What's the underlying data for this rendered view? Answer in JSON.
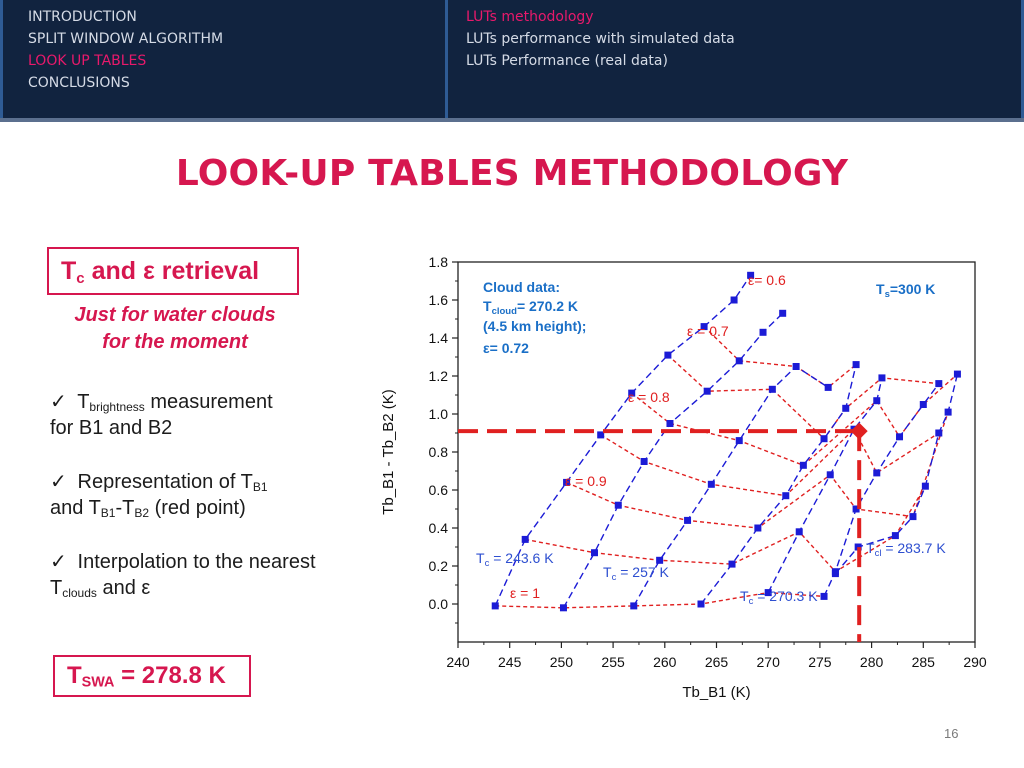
{
  "nav": {
    "left": [
      "INTRODUCTION",
      "SPLIT WINDOW ALGORITHM",
      "LOOK UP TABLES",
      "CONCLUSIONS"
    ],
    "left_active": 2,
    "right": [
      "LUTs methodology",
      "LUTs performance with simulated data",
      "LUTs Performance (real data)"
    ],
    "right_active": 0
  },
  "title": "LOOK-UP TABLES METHODOLOGY",
  "retrieval_box": {
    "t": "T",
    "sub": "c",
    "rest": " and ε retrieval"
  },
  "note": {
    "line1": "Just for water clouds",
    "line2": "for the moment"
  },
  "bullets": {
    "b1": {
      "check": "✓",
      "a": " T",
      "sub1": "brightness",
      "b": " measurement",
      "c": "for B1 and B2"
    },
    "b2": {
      "check": "✓",
      "a": " Representation of T",
      "sub1": "B1",
      "c1": "and T",
      "sub2": "B1",
      "c2": "-T",
      "sub3": "B2",
      "c3": " (red point)"
    },
    "b3": {
      "check": "✓",
      "a": " Interpolation to the nearest",
      "c1": "T",
      "sub1": "clouds",
      "c2": " and ε"
    }
  },
  "tswa": {
    "t": "T",
    "sub": "SWA",
    "rest": " = 278.8 K"
  },
  "page_number": "16",
  "colors": {
    "accent": "#d6174f",
    "navbar": "#11233f",
    "blue_series": "#1b1bd6",
    "red_series": "#e02020"
  },
  "chart_data": {
    "type": "line",
    "xlabel": "Tb_B1 (K)",
    "ylabel": "Tb_B1 - Tb_B2 (K)",
    "xlim": [
      240,
      290
    ],
    "ylim": [
      -0.2,
      1.8
    ],
    "xticks": [
      "240",
      "245",
      "250",
      "255",
      "260",
      "265",
      "270",
      "275",
      "280",
      "285",
      "290"
    ],
    "yticks": [
      "0.0",
      "0.2",
      "0.4",
      "0.6",
      "0.8",
      "1.0",
      "1.2",
      "1.4",
      "1.6",
      "1.8"
    ],
    "blue_series": [
      {
        "name": "Tc = 243.6 K",
        "points": [
          [
            243.6,
            -0.01
          ],
          [
            246.5,
            0.34
          ],
          [
            250.5,
            0.64
          ],
          [
            253.8,
            0.89
          ],
          [
            256.8,
            1.11
          ],
          [
            260.3,
            1.31
          ],
          [
            263.8,
            1.46
          ],
          [
            266.7,
            1.6
          ],
          [
            268.3,
            1.73
          ]
        ]
      },
      {
        "name": "Tc = 257 K",
        "points": [
          [
            250.2,
            -0.02
          ],
          [
            253.2,
            0.27
          ],
          [
            255.5,
            0.52
          ],
          [
            258,
            0.75
          ],
          [
            260.5,
            0.95
          ],
          [
            264.1,
            1.12
          ],
          [
            267.2,
            1.28
          ],
          [
            269.5,
            1.43
          ],
          [
            271.4,
            1.53
          ]
        ]
      },
      {
        "name": "Tc = 270.3 K",
        "points": [
          [
            257,
            -0.01
          ],
          [
            259.5,
            0.23
          ],
          [
            262.2,
            0.44
          ],
          [
            264.5,
            0.63
          ],
          [
            267.2,
            0.86
          ],
          [
            270.4,
            1.13
          ],
          [
            272.7,
            1.25
          ],
          [
            275.8,
            1.14
          ]
        ]
      },
      {
        "name": "Tc = 283.7 K",
        "points": [
          [
            263.5,
            0
          ],
          [
            266.5,
            0.21
          ],
          [
            269,
            0.4
          ],
          [
            271.7,
            0.57
          ],
          [
            273.4,
            0.73
          ],
          [
            275.4,
            0.87
          ],
          [
            277.5,
            1.03
          ],
          [
            278.5,
            1.26
          ]
        ]
      },
      {
        "name": "",
        "points": [
          [
            270,
            0.06
          ],
          [
            273,
            0.38
          ],
          [
            276,
            0.68
          ],
          [
            278.3,
            0.92
          ],
          [
            280.5,
            1.07
          ],
          [
            281,
            1.19
          ]
        ]
      },
      {
        "name": "",
        "points": [
          [
            275.4,
            0.04
          ],
          [
            276.5,
            0.17
          ],
          [
            278.5,
            0.5
          ],
          [
            280.5,
            0.69
          ],
          [
            282.7,
            0.88
          ],
          [
            285,
            1.05
          ],
          [
            286.5,
            1.16
          ]
        ]
      },
      {
        "name": "",
        "points": [
          [
            276.5,
            0.16
          ],
          [
            278.7,
            0.3
          ],
          [
            282.3,
            0.36
          ],
          [
            284,
            0.46
          ],
          [
            285.2,
            0.62
          ],
          [
            286.5,
            0.9
          ],
          [
            287.4,
            1.01
          ],
          [
            288.3,
            1.21
          ]
        ]
      }
    ],
    "red_series": [
      {
        "name": "ε = 1",
        "points": [
          [
            243.6,
            -0.01
          ],
          [
            250.2,
            -0.02
          ],
          [
            257,
            -0.01
          ],
          [
            263.5,
            0
          ],
          [
            270,
            0.06
          ],
          [
            275.4,
            0.04
          ]
        ]
      },
      {
        "name": "ε = 0.9",
        "points": [
          [
            246.5,
            0.34
          ],
          [
            253.2,
            0.27
          ],
          [
            259.5,
            0.23
          ],
          [
            266.5,
            0.21
          ],
          [
            273,
            0.38
          ],
          [
            276.5,
            0.17
          ],
          [
            282.3,
            0.36
          ],
          [
            285.2,
            0.62
          ]
        ]
      },
      {
        "name": "ε = 0.8",
        "points": [
          [
            250.5,
            0.64
          ],
          [
            255.5,
            0.52
          ],
          [
            262.2,
            0.44
          ],
          [
            269,
            0.4
          ],
          [
            276,
            0.68
          ],
          [
            278.5,
            0.5
          ],
          [
            284,
            0.46
          ],
          [
            287.4,
            1.01
          ]
        ]
      },
      {
        "name": "ε = 0.7",
        "points": [
          [
            253.8,
            0.89
          ],
          [
            258,
            0.75
          ],
          [
            264.5,
            0.63
          ],
          [
            271.7,
            0.57
          ],
          [
            278.3,
            0.92
          ],
          [
            280.5,
            0.69
          ],
          [
            286.5,
            0.9
          ]
        ]
      },
      {
        "name": "ε = 0.6",
        "points": [
          [
            256.8,
            1.11
          ],
          [
            260.5,
            0.95
          ],
          [
            267.2,
            0.86
          ],
          [
            273.4,
            0.73
          ],
          [
            280.5,
            1.07
          ],
          [
            282.7,
            0.88
          ],
          [
            285,
            1.05
          ],
          [
            288.3,
            1.21
          ]
        ]
      },
      {
        "name": "",
        "points": [
          [
            260.3,
            1.31
          ],
          [
            264.1,
            1.12
          ],
          [
            270.4,
            1.13
          ],
          [
            275.4,
            0.87
          ],
          [
            277.5,
            1.03
          ],
          [
            281,
            1.19
          ],
          [
            286.5,
            1.16
          ]
        ]
      },
      {
        "name": "",
        "points": [
          [
            263.8,
            1.46
          ],
          [
            267.2,
            1.28
          ],
          [
            272.7,
            1.25
          ],
          [
            275.8,
            1.14
          ],
          [
            278.5,
            1.26
          ]
        ]
      }
    ],
    "red_point": {
      "x": 278.8,
      "y": 0.91
    },
    "annotations": {
      "cloud_title": "Cloud data:",
      "cloud_t": "T",
      "cloud_t_sub": "cloud",
      "cloud_t_val": "= 270.2 K",
      "cloud_height": "(4.5 km height);",
      "cloud_eps": "ε= 0.72",
      "ts_t": "T",
      "ts_sub": "s",
      "ts_val": "=300 K",
      "tc_label_t": "T",
      "tc_label_c": "c",
      "tc_label_cl": "cl",
      "tc_243": " = 243.6 K",
      "tc_257": " = 257 K",
      "tc_270": " = 270.3 K",
      "tc_283": " = 283.7 K",
      "eps_1": "ε = 1",
      "eps_09": "ε = 0.9",
      "eps_08": "ε = 0.8",
      "eps_07": "ε = 0.7",
      "eps_06": "ε= 0.6"
    }
  }
}
